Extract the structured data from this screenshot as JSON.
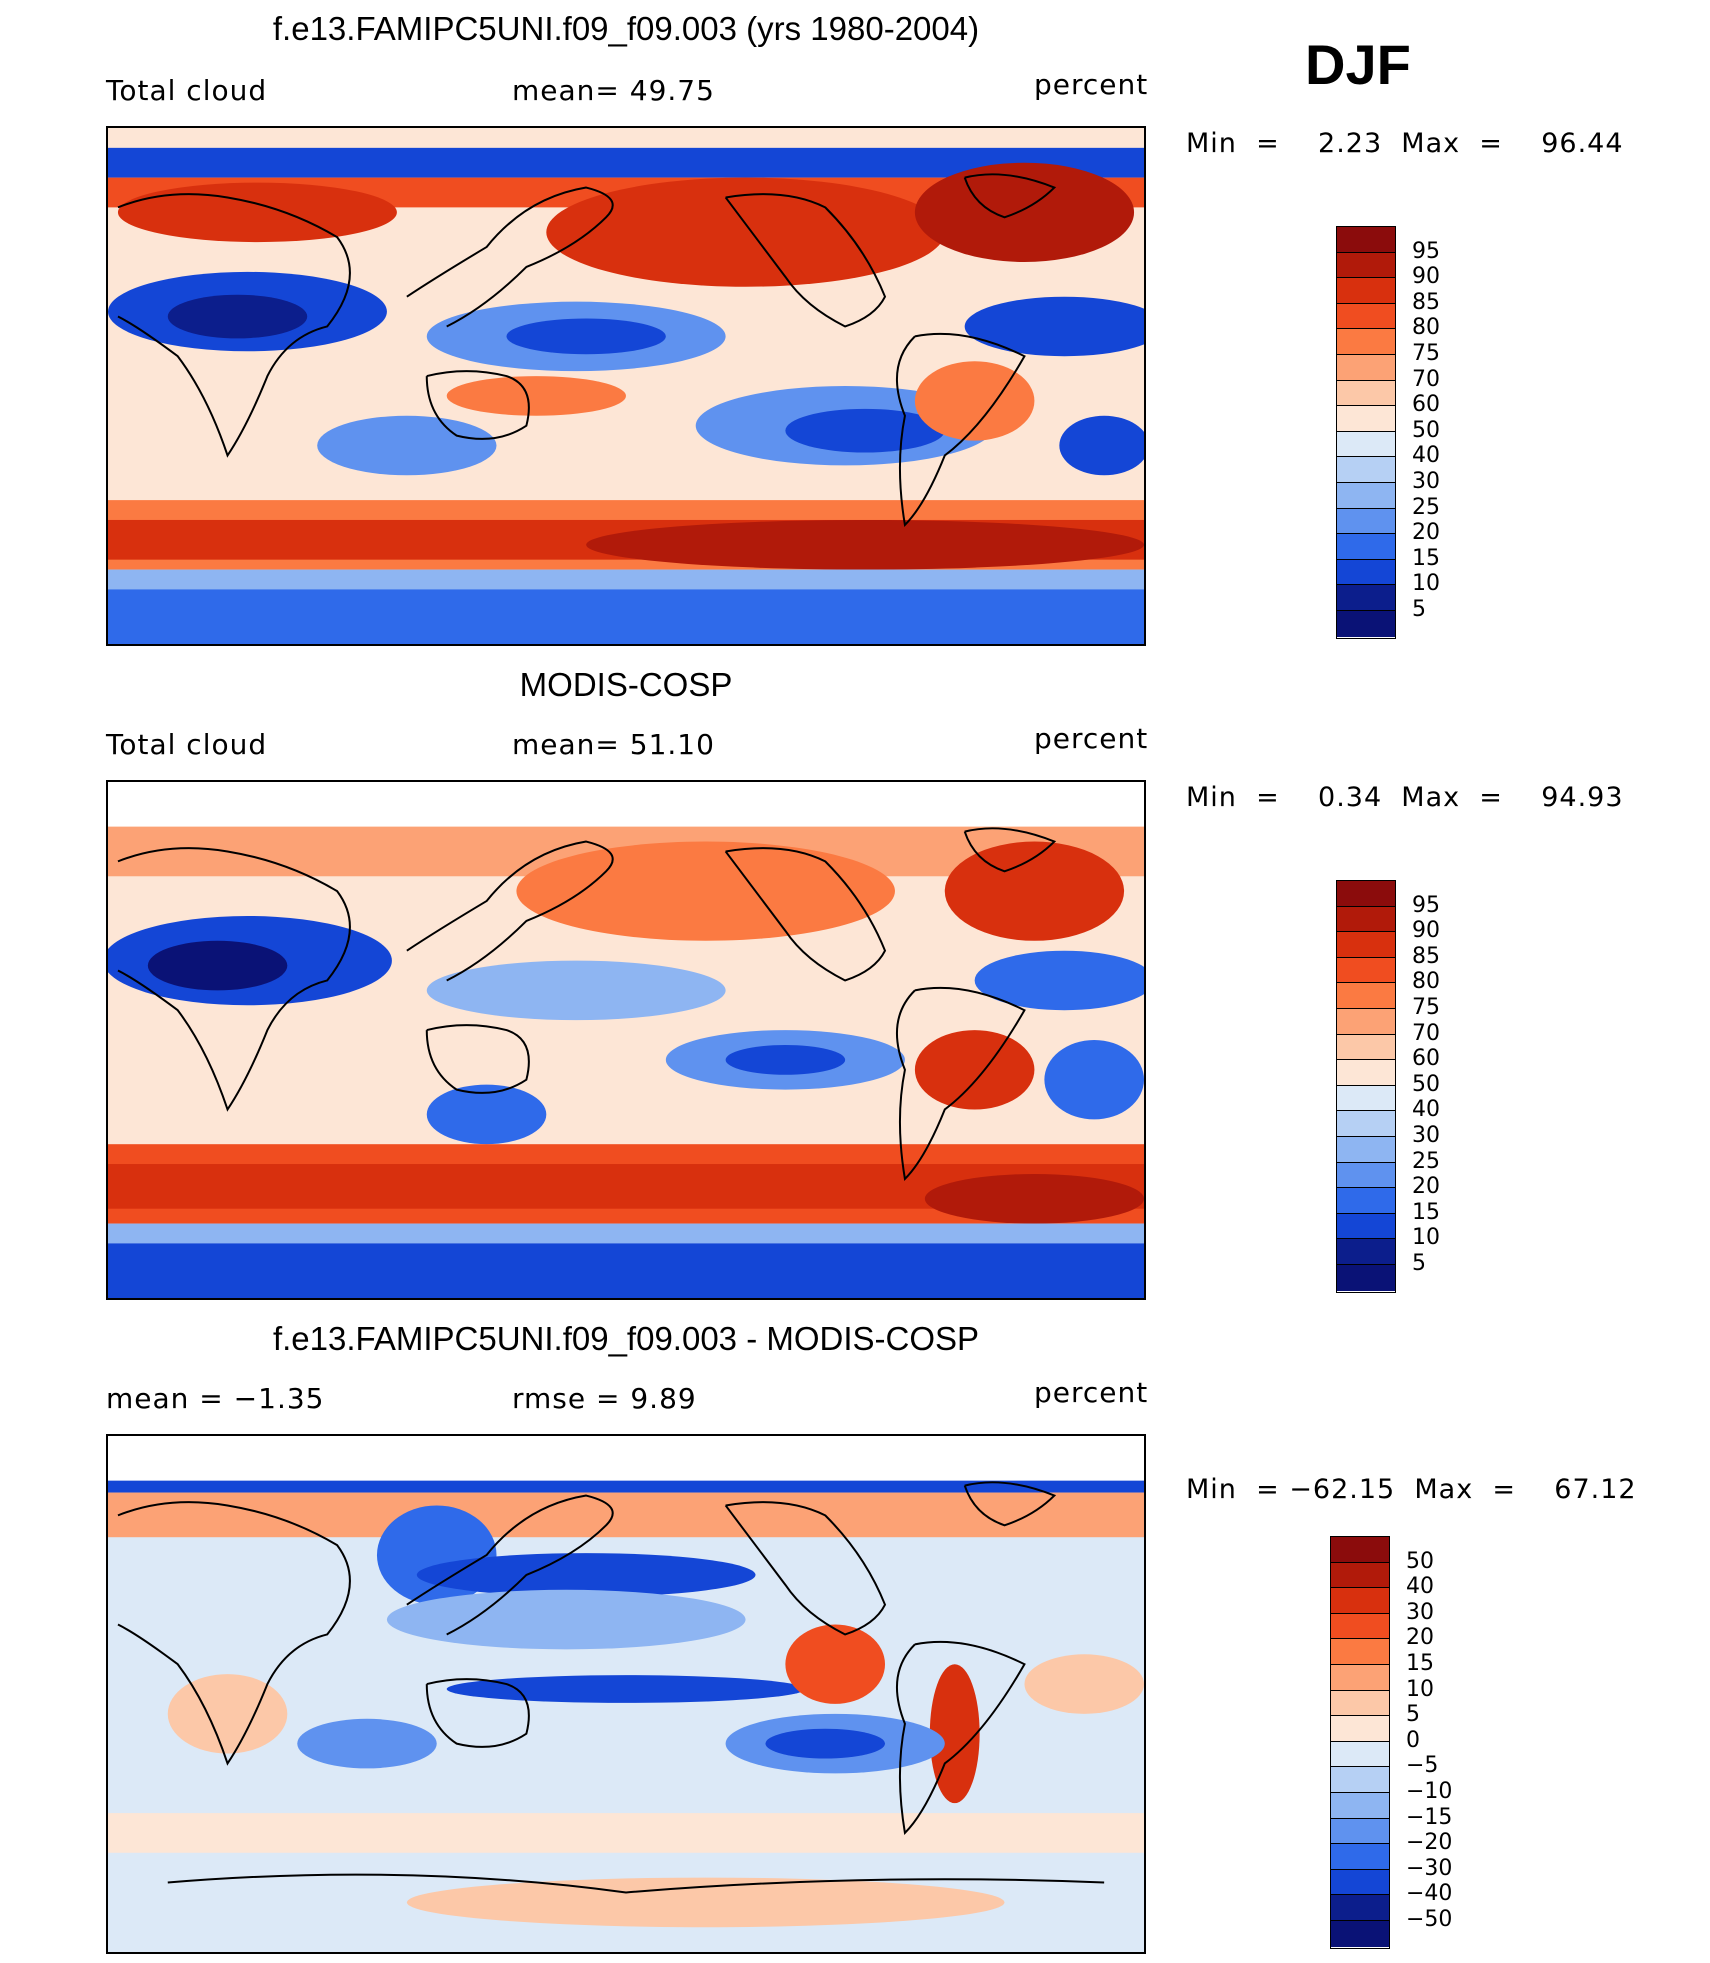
{
  "season": "DJF",
  "panels": [
    {
      "title": "f.e13.FAMIPC5UNI.f09_f09.003 (yrs 1980-2004)",
      "left_label": "Total cloud",
      "center_label": "mean=   49.75",
      "right_label": "percent",
      "minmax": "Min  =    2.23  Max  =    96.44",
      "legend": [
        "95",
        "90",
        "85",
        "80",
        "75",
        "70",
        "60",
        "50",
        "40",
        "30",
        "25",
        "20",
        "15",
        "10",
        "5"
      ],
      "colors": [
        "#8b0c0c",
        "#b11a0a",
        "#d8300e",
        "#f04d20",
        "#fb7a42",
        "#fca275",
        "#fcc8a8",
        "#fde6d6",
        "#dce9f7",
        "#b6d0f4",
        "#8eb5f2",
        "#5f92ef",
        "#2f6aea",
        "#1446d6",
        "#0c1e8c",
        "#0a1276"
      ]
    },
    {
      "title": "MODIS-COSP",
      "left_label": "Total cloud",
      "center_label": "mean=   51.10",
      "right_label": "percent",
      "minmax": "Min  =    0.34  Max  =    94.93",
      "legend": [
        "95",
        "90",
        "85",
        "80",
        "75",
        "70",
        "60",
        "50",
        "40",
        "30",
        "25",
        "20",
        "15",
        "10",
        "5"
      ],
      "colors": [
        "#8b0c0c",
        "#b11a0a",
        "#d8300e",
        "#f04d20",
        "#fb7a42",
        "#fca275",
        "#fcc8a8",
        "#fde6d6",
        "#dce9f7",
        "#b6d0f4",
        "#8eb5f2",
        "#5f92ef",
        "#2f6aea",
        "#1446d6",
        "#0c1e8c",
        "#0a1276"
      ]
    },
    {
      "title": "f.e13.FAMIPC5UNI.f09_f09.003 - MODIS-COSP",
      "left_label": "mean  =    −1.35",
      "center_label": "rmse  =     9.89",
      "right_label": "percent",
      "minmax": "Min  = −62.15  Max  =    67.12",
      "legend": [
        "50",
        "40",
        "30",
        "20",
        "15",
        "10",
        "5",
        "0",
        "−5",
        "−10",
        "−15",
        "−20",
        "−30",
        "−40",
        "−50"
      ],
      "colors": [
        "#8b0c0c",
        "#b11a0a",
        "#d8300e",
        "#f04d20",
        "#fb7a42",
        "#fca275",
        "#fcc8a8",
        "#fde6d6",
        "#dce9f7",
        "#b6d0f4",
        "#8eb5f2",
        "#5f92ef",
        "#2f6aea",
        "#1446d6",
        "#0c1e8c",
        "#0a1276"
      ]
    }
  ]
}
